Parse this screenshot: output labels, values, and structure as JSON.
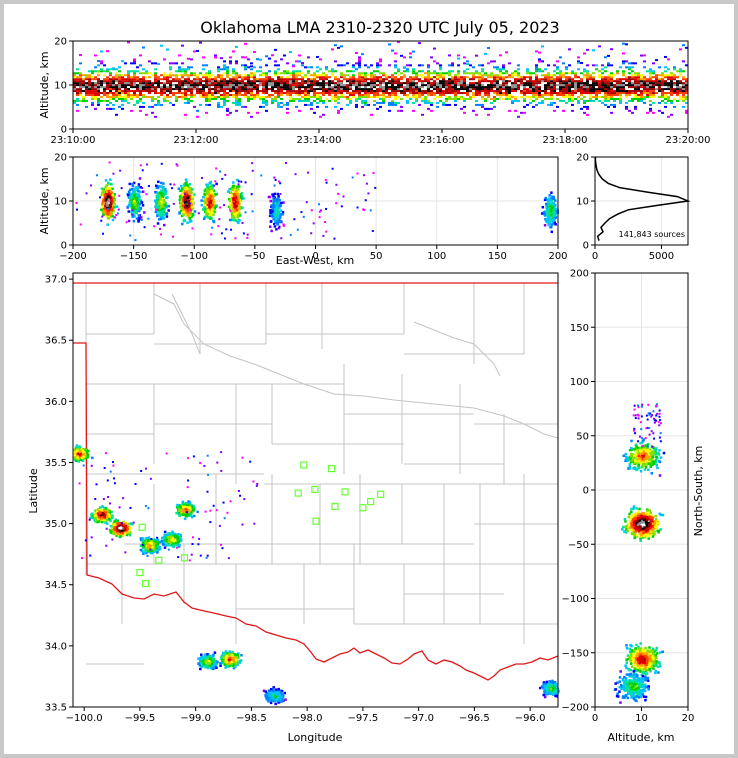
{
  "chart_data": [
    {
      "id": "time-height",
      "type": "heatmap",
      "title": "Oklahoma LMA 2310-2320 UTC July 05, 2023",
      "ylabel": "Altitude, km",
      "xlim": [
        "23:10:00",
        "23:20:00"
      ],
      "ylim": [
        0,
        20
      ],
      "x_ticks": [
        "23:10:00",
        "23:12:00",
        "23:14:00",
        "23:16:00",
        "23:18:00",
        "23:20:00"
      ],
      "y_ticks": [
        "0",
        "10",
        "20"
      ],
      "source_band_km": [
        3,
        18
      ],
      "peak_density_altitude_km": 10
    },
    {
      "id": "east-west-altitude",
      "type": "heatmap",
      "xlabel": "East-West, km",
      "ylabel": "Altitude, km",
      "xlim": [
        -200,
        200
      ],
      "ylim": [
        0,
        20
      ],
      "x_ticks": [
        "−200",
        "−150",
        "−100",
        "−50",
        "0",
        "50",
        "100",
        "150",
        "200"
      ],
      "y_ticks": [
        "0",
        "10",
        "20"
      ],
      "cells": [
        {
          "x": -172,
          "z": 10,
          "intensity": 1.0
        },
        {
          "x": -150,
          "z": 10,
          "intensity": 0.5
        },
        {
          "x": -128,
          "z": 10,
          "intensity": 0.55
        },
        {
          "x": -107,
          "z": 10,
          "intensity": 0.95
        },
        {
          "x": -88,
          "z": 10,
          "intensity": 0.8
        },
        {
          "x": -67,
          "z": 10,
          "intensity": 0.85
        },
        {
          "x": -33,
          "z": 8,
          "intensity": 0.35
        },
        {
          "x": 193,
          "z": 8,
          "intensity": 0.45
        }
      ]
    },
    {
      "id": "altitude-histogram",
      "type": "line",
      "annotation": "141,843 sources",
      "xlim": [
        0,
        7000
      ],
      "ylim": [
        0,
        20
      ],
      "x_ticks": [
        "0",
        "5000"
      ],
      "y_ticks": [
        "0",
        "10",
        "20"
      ],
      "altitude_km": [
        1,
        2,
        3,
        4,
        5,
        6,
        7,
        8,
        9,
        10,
        11,
        12,
        13,
        14,
        15,
        16,
        17,
        18,
        19,
        20
      ],
      "counts": [
        300,
        200,
        600,
        450,
        750,
        1100,
        1700,
        2500,
        4700,
        7000,
        6200,
        4000,
        1900,
        1000,
        550,
        300,
        150,
        80,
        40,
        20
      ]
    },
    {
      "id": "plan-view",
      "type": "heatmap",
      "xlabel": "Longitude",
      "ylabel": "Latitude",
      "xlim": [
        -100.1,
        -95.75
      ],
      "ylim": [
        33.5,
        37.05
      ],
      "x_ticks": [
        "−100.0",
        "−99.5",
        "−99.0",
        "−98.5",
        "−98.0",
        "−97.5",
        "−97.0",
        "−96.5",
        "−96.0"
      ],
      "y_ticks": [
        "33.5",
        "34.0",
        "34.5",
        "35.0",
        "35.5",
        "36.0",
        "36.5",
        "37.0"
      ],
      "cells": [
        {
          "lon": -100.05,
          "lat": 35.58,
          "intensity": 0.75
        },
        {
          "lon": -99.85,
          "lat": 35.08,
          "intensity": 0.85
        },
        {
          "lon": -99.68,
          "lat": 34.97,
          "intensity": 1.0
        },
        {
          "lon": -99.42,
          "lat": 34.83,
          "intensity": 0.65
        },
        {
          "lon": -99.22,
          "lat": 34.88,
          "intensity": 0.6
        },
        {
          "lon": -99.1,
          "lat": 35.12,
          "intensity": 0.7
        },
        {
          "lon": -98.9,
          "lat": 33.88,
          "intensity": 0.55
        },
        {
          "lon": -98.7,
          "lat": 33.9,
          "intensity": 0.75
        },
        {
          "lon": -98.3,
          "lat": 33.6,
          "intensity": 0.4
        },
        {
          "lon": -95.82,
          "lat": 33.66,
          "intensity": 0.45
        }
      ],
      "stations": [
        {
          "lon": -98.03,
          "lat": 35.48
        },
        {
          "lon": -97.78,
          "lat": 35.45
        },
        {
          "lon": -98.08,
          "lat": 35.25
        },
        {
          "lon": -97.93,
          "lat": 35.28
        },
        {
          "lon": -97.66,
          "lat": 35.26
        },
        {
          "lon": -97.34,
          "lat": 35.24
        },
        {
          "lon": -97.43,
          "lat": 35.18
        },
        {
          "lon": -97.75,
          "lat": 35.14
        },
        {
          "lon": -97.5,
          "lat": 35.13
        },
        {
          "lon": -97.92,
          "lat": 35.02
        },
        {
          "lon": -99.48,
          "lat": 34.97
        },
        {
          "lon": -99.33,
          "lat": 34.7
        },
        {
          "lon": -99.1,
          "lat": 34.72
        },
        {
          "lon": -99.5,
          "lat": 34.6
        },
        {
          "lon": -99.45,
          "lat": 34.51
        }
      ]
    },
    {
      "id": "altitude-north-south",
      "type": "heatmap",
      "xlabel": "Altitude, km",
      "ylabel": "North-South, km",
      "xlim": [
        0,
        20
      ],
      "ylim": [
        -200,
        200
      ],
      "x_ticks": [
        "0",
        "10",
        "20"
      ],
      "y_ticks": [
        "−200",
        "−150",
        "−100",
        "−50",
        "0",
        "50",
        "100",
        "150",
        "200"
      ],
      "cells": [
        {
          "z": 10,
          "y": 32,
          "intensity": 0.7
        },
        {
          "z": 10,
          "y": -30,
          "intensity": 1.0
        },
        {
          "z": 10,
          "y": -155,
          "intensity": 0.8
        },
        {
          "z": 8,
          "y": -180,
          "intensity": 0.45
        }
      ]
    }
  ]
}
